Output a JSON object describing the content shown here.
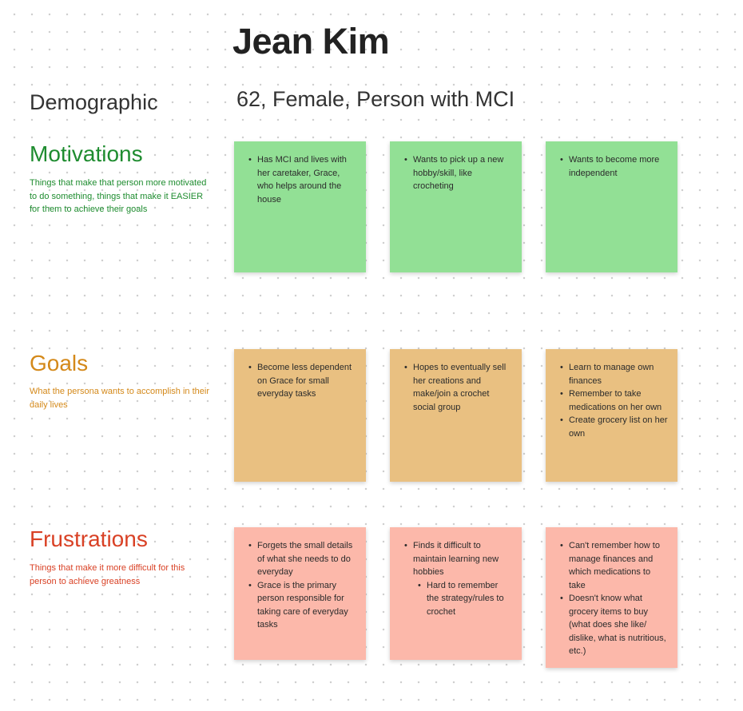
{
  "persona": {
    "name": "Jean Kim",
    "demographic_label": "Demographic",
    "demographic_value": "62, Female, Person with MCI"
  },
  "colors": {
    "motivations": "#1e8c2f",
    "goals": "#d4891a",
    "frustrations": "#d94125",
    "green_note": "#92e095",
    "orange_note": "#e9c081",
    "pink_note": "#fcb8aa"
  },
  "sections": {
    "motivations": {
      "title": "Motivations",
      "description": "Things that make that person more motivated to do something, things that make it EASIER for them to achieve their goals",
      "notes": [
        {
          "items": [
            "Has MCI and lives with her caretaker, Grace, who helps around the house"
          ]
        },
        {
          "items": [
            "Wants to pick up a new hobby/skill, like crocheting"
          ]
        },
        {
          "items": [
            "Wants to become more independent"
          ]
        }
      ]
    },
    "goals": {
      "title": "Goals",
      "description": "What the persona wants to accomplish in their daily lives",
      "notes": [
        {
          "items": [
            "Become less dependent on Grace for small everyday tasks"
          ]
        },
        {
          "items": [
            "Hopes to eventually sell her creations and make/join a crochet social group"
          ]
        },
        {
          "items": [
            "Learn to manage own finances",
            "Remember to take medications on her own",
            "Create grocery list on her own"
          ]
        }
      ]
    },
    "frustrations": {
      "title": "Frustrations",
      "description": "Things that make it more difficult for this person to achieve greatness",
      "notes": [
        {
          "items": [
            "Forgets the small details of what she needs to do everyday",
            "Grace is the primary person responsible for taking care of everyday tasks"
          ]
        },
        {
          "items": [
            "Finds it difficult to maintain learning new hobbies"
          ],
          "subitems": [
            "Hard to remember the strategy/rules to crochet"
          ]
        },
        {
          "items": [
            "Can't remember how to manage finances and which medications to take",
            "Doesn't know what grocery items to buy (what does she like/ dislike, what is nutritious, etc.)"
          ]
        }
      ]
    }
  }
}
